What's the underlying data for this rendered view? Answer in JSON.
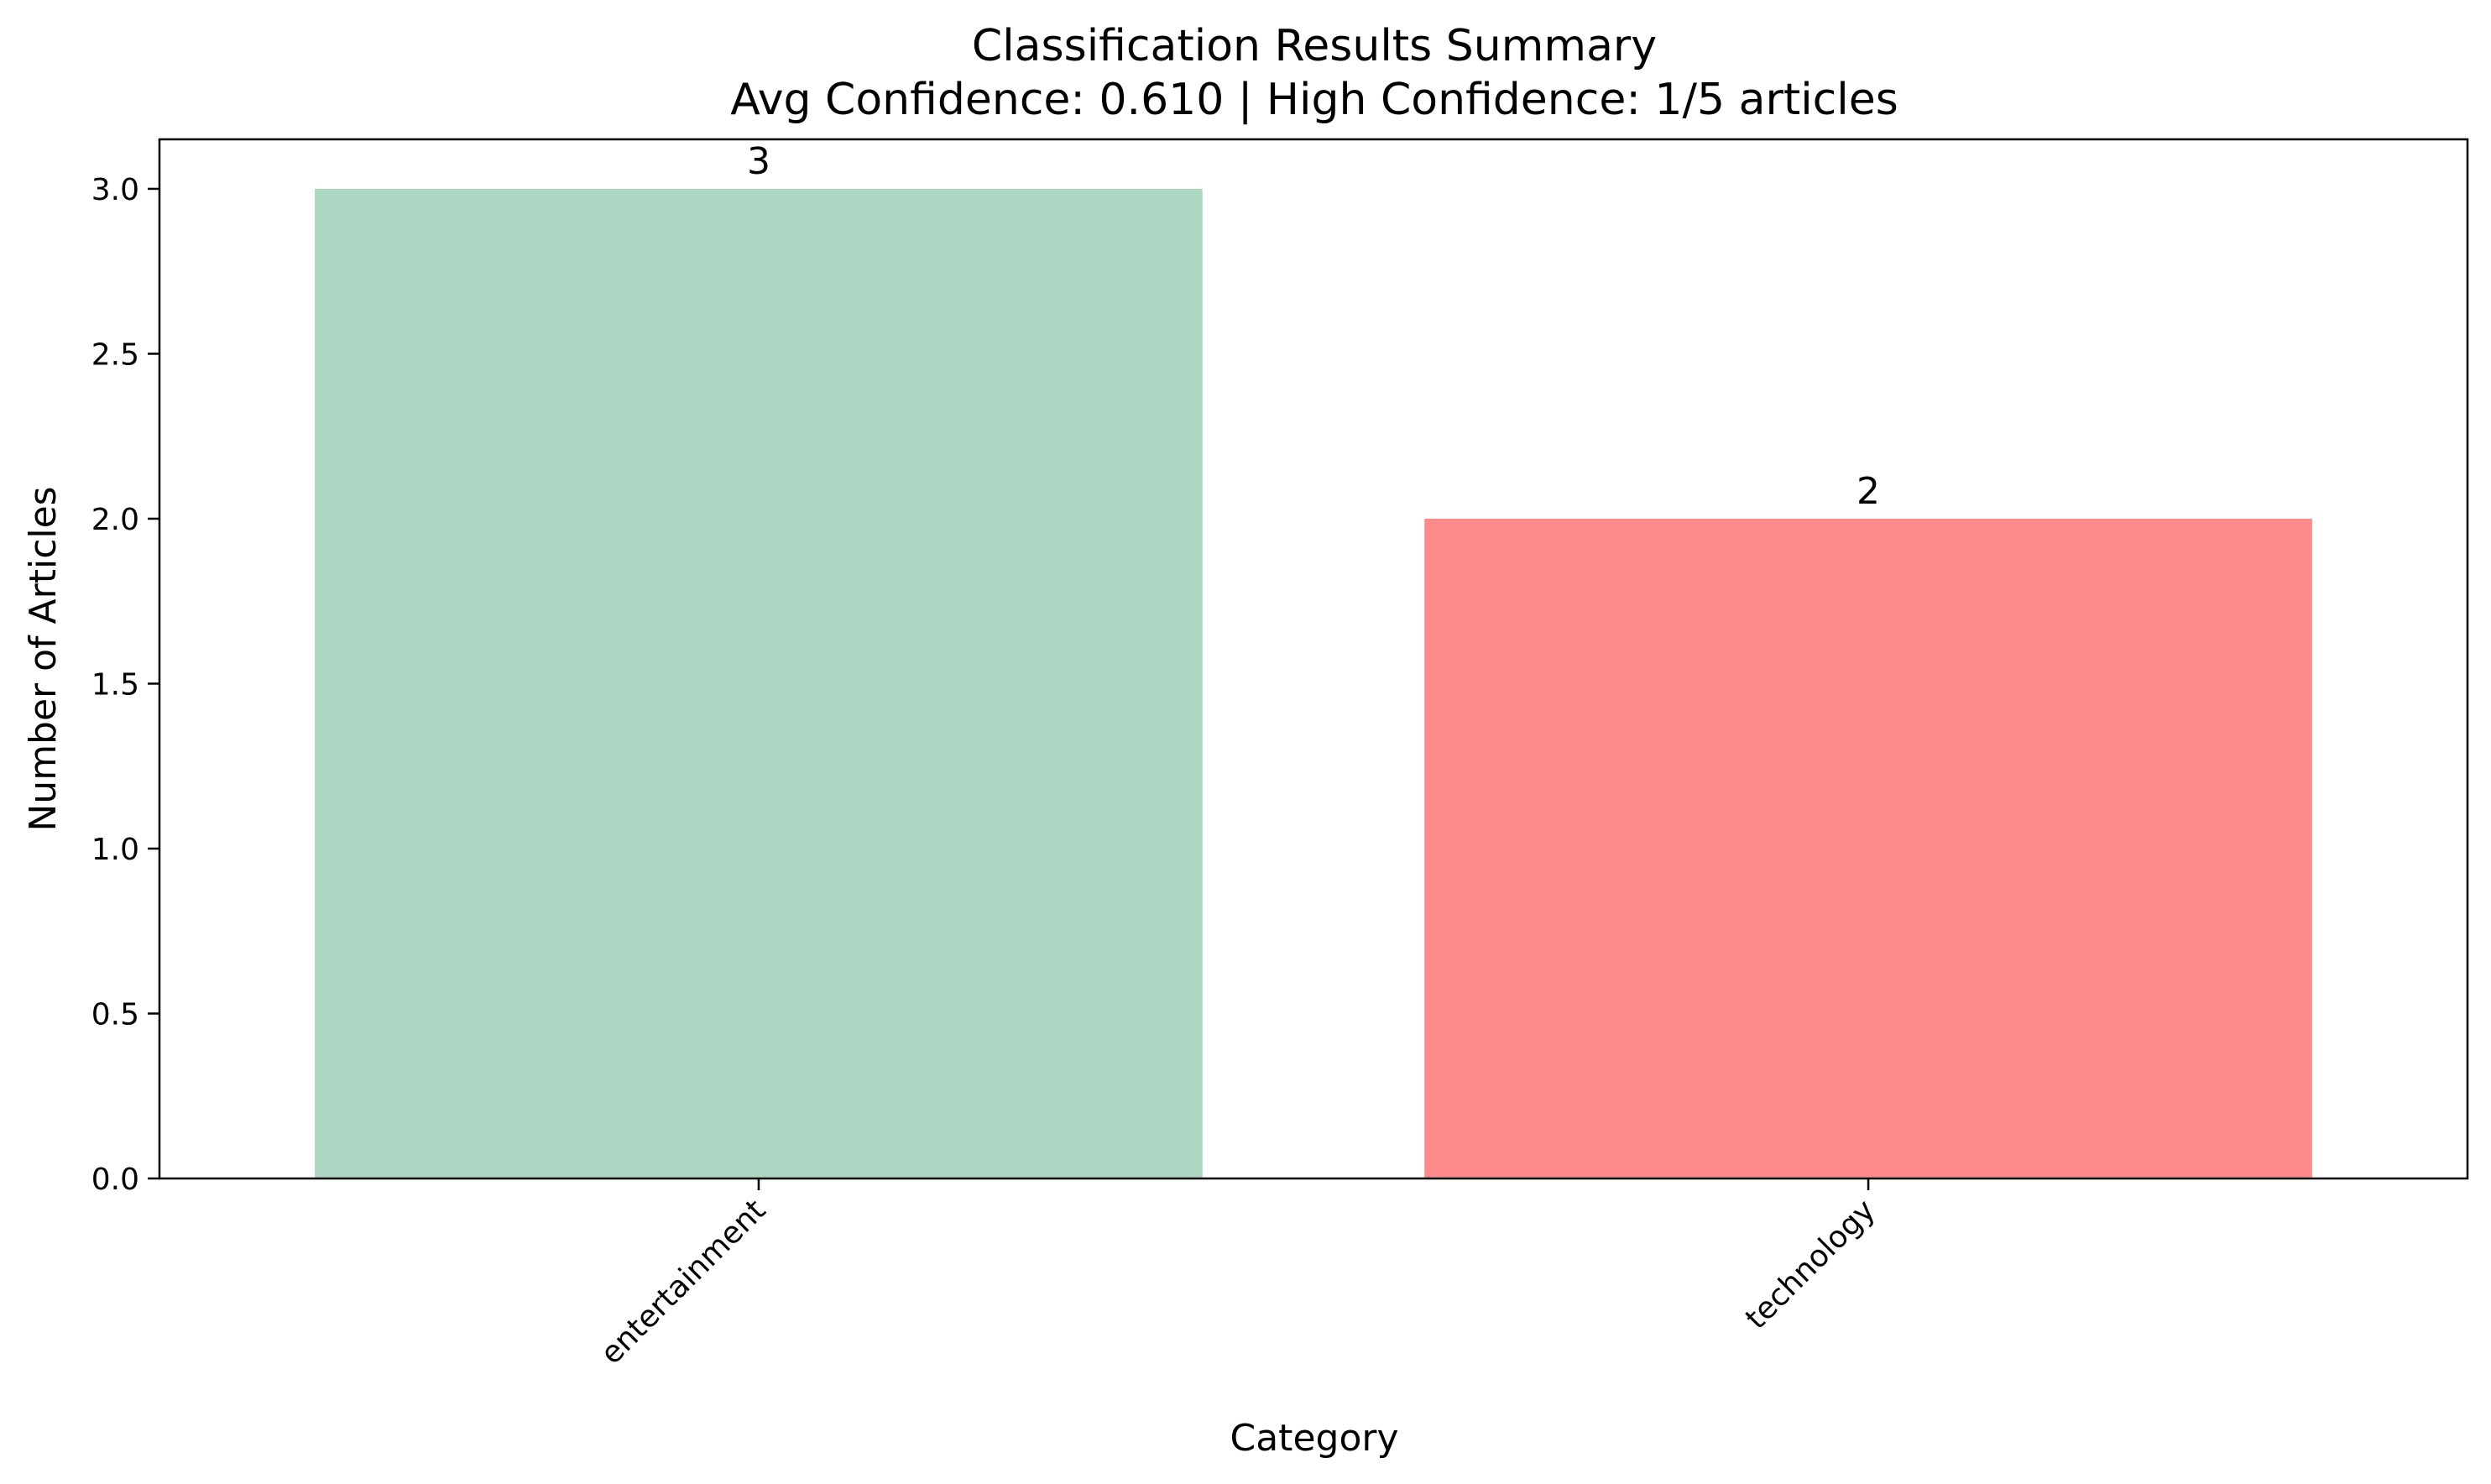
{
  "chart_data": {
    "type": "bar",
    "title_lines": [
      "Classification Results Summary",
      "Avg Confidence: 0.610 | High Confidence: 1/5 articles"
    ],
    "xlabel": "Category",
    "ylabel": "Number of Articles",
    "categories": [
      "entertainment",
      "technology"
    ],
    "values": [
      3,
      2
    ],
    "value_labels": [
      "3",
      "2"
    ],
    "bar_colors": [
      "#acd7c2",
      "#ff8a8a"
    ],
    "ylim": [
      0,
      3.15
    ],
    "yticks": [
      0.0,
      0.5,
      1.0,
      1.5,
      2.0,
      2.5,
      3.0
    ],
    "ytick_labels": [
      "0.0",
      "0.5",
      "1.0",
      "1.5",
      "2.0",
      "2.5",
      "3.0"
    ],
    "grid": false,
    "legend": "none"
  }
}
